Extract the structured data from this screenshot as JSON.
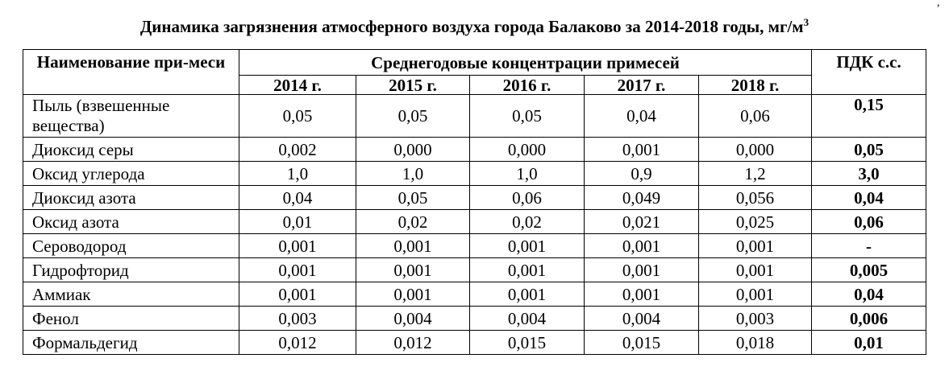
{
  "corner_mark": ",",
  "title": "Динамика загрязнения атмосферного воздуха города Балаково за 2014-2018 годы, мг/м",
  "title_superscript": "3",
  "table": {
    "name_header": "Наименование при-меси",
    "group_header": "Среднегодовые концентрации примесей",
    "pdk_header": "ПДК с.с.",
    "years": [
      "2014 г.",
      "2015 г.",
      "2016 г.",
      "2017 г.",
      "2018 г."
    ],
    "rows": [
      {
        "name": "Пыль (взвешенные вещества)",
        "values": [
          "0,05",
          "0,05",
          "0,05",
          "0,04",
          "0,06"
        ],
        "pdk": "0,15"
      },
      {
        "name": "Диоксид серы",
        "values": [
          "0,002",
          "0,000",
          "0,000",
          "0,001",
          "0,000"
        ],
        "pdk": "0,05"
      },
      {
        "name": "Оксид углерода",
        "values": [
          "1,0",
          "1,0",
          "1,0",
          "0,9",
          "1,2"
        ],
        "pdk": "3,0"
      },
      {
        "name": "Диоксид азота",
        "values": [
          "0,04",
          "0,05",
          "0,06",
          "0,049",
          "0,056"
        ],
        "pdk": "0,04"
      },
      {
        "name": "Оксид азота",
        "values": [
          "0,01",
          "0,02",
          "0,02",
          "0,021",
          "0,025"
        ],
        "pdk": "0,06"
      },
      {
        "name": "Сероводород",
        "values": [
          "0,001",
          "0,001",
          "0,001",
          "0,001",
          "0,001"
        ],
        "pdk": "-"
      },
      {
        "name": "Гидрофторид",
        "values": [
          "0,001",
          "0,001",
          "0,001",
          "0,001",
          "0,001"
        ],
        "pdk": "0,005"
      },
      {
        "name": "Аммиак",
        "values": [
          "0,001",
          "0,001",
          "0,001",
          "0,001",
          "0,001"
        ],
        "pdk": "0,04"
      },
      {
        "name": "Фенол",
        "values": [
          "0,003",
          "0,004",
          "0,004",
          "0,004",
          "0,003"
        ],
        "pdk": "0,006"
      },
      {
        "name": "Формальдегид",
        "values": [
          "0,012",
          "0,012",
          "0,015",
          "0,015",
          "0,018"
        ],
        "pdk": "0,01"
      }
    ]
  }
}
